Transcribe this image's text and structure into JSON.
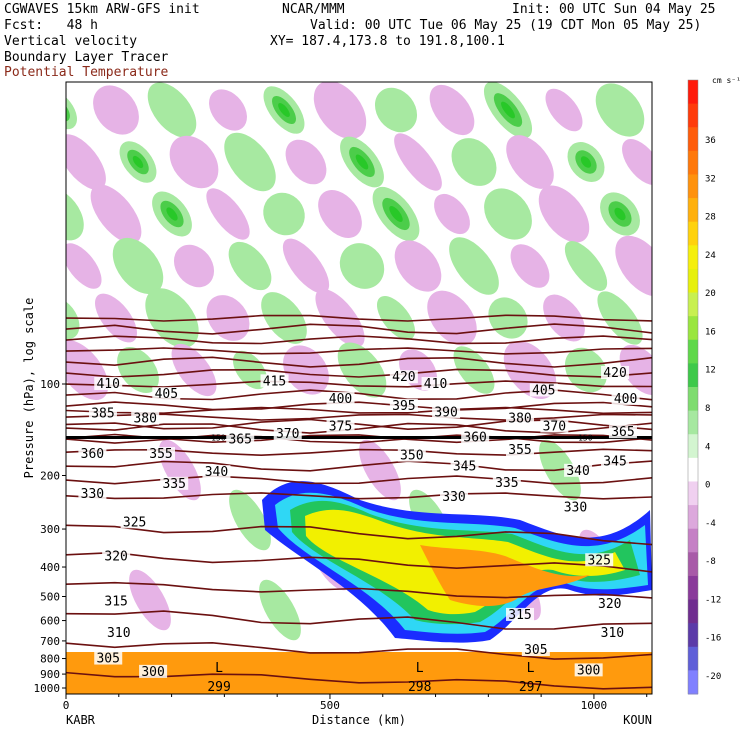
{
  "header": {
    "line1_left": "CGWAVES 15km ARW-GFS init",
    "line1_mid": "NCAR/MMM",
    "line1_right": "Init: 00 UTC Sun 04 May 25",
    "line2_left": "Fcst:   48 h",
    "line2_right": "Valid: 00 UTC Tue 06 May 25 (19 CDT Mon 05 May 25)",
    "line3_left": "Vertical velocity",
    "line3_right": "XY= 187.4,173.8 to 191.8,100.1",
    "line4_left": "Boundary Layer Tracer",
    "line5_left": "Potential Temperature"
  },
  "colors": {
    "theta": "#6b1010",
    "tracer_outer": "#1a2cff",
    "tracer_low": "#2fd7f5",
    "tracer_mid": "#22c55e",
    "tracer_hi": "#f2f000",
    "tracer_top": "#ff9a0d",
    "wave_up": "#a7e9a1",
    "wave_down": "#e6b3e6"
  },
  "chart_data": {
    "type": "cross-section contour",
    "xlabel": "Distance (km)",
    "ylabel": "Pressure (hPa), log scale",
    "x_ticks": [
      0,
      500,
      1000
    ],
    "xlim": [
      0,
      1110
    ],
    "y_ticks": [
      100,
      200,
      300,
      400,
      500,
      600,
      700,
      800,
      900,
      1000
    ],
    "y_scale": "log",
    "left_endpoint": "KABR",
    "right_endpoint": "KOUN",
    "colorbar": {
      "unit": "cm s⁻¹",
      "tick_labels": [
        36,
        32,
        28,
        24,
        20,
        16,
        12,
        8,
        4,
        0,
        -4,
        -8,
        -12,
        -16,
        -20
      ],
      "colors": [
        "#ff1a0a",
        "#ff3b0a",
        "#ff5c0a",
        "#ff780a",
        "#ff920d",
        "#ffb00d",
        "#ffd20d",
        "#f5ef0d",
        "#e7f00d",
        "#c8f050",
        "#9ae63f",
        "#5fd84a",
        "#3ec94a",
        "#7edc6f",
        "#a6e8a0",
        "#d3f5d0",
        "#ffffff",
        "#f0d0f0",
        "#dca8dc",
        "#c580c5",
        "#a85aa8",
        "#8a3a9a",
        "#6f2d8f",
        "#5b3aa8",
        "#5f5fd8",
        "#8080ff"
      ]
    },
    "theta_contours": [
      {
        "label": "420",
        "x": 640,
        "p": 95
      },
      {
        "label": "420",
        "x": 1040,
        "p": 92
      },
      {
        "label": "415",
        "x": 395,
        "p": 98
      },
      {
        "label": "410",
        "x": 80,
        "p": 100
      },
      {
        "label": "410",
        "x": 700,
        "p": 100
      },
      {
        "label": "405",
        "x": 190,
        "p": 108
      },
      {
        "label": "405",
        "x": 905,
        "p": 105
      },
      {
        "label": "400",
        "x": 520,
        "p": 112
      },
      {
        "label": "400",
        "x": 1060,
        "p": 112
      },
      {
        "label": "395",
        "x": 640,
        "p": 118
      },
      {
        "label": "390",
        "x": 720,
        "p": 124
      },
      {
        "label": "385",
        "x": 70,
        "p": 125
      },
      {
        "label": "380",
        "x": 150,
        "p": 130
      },
      {
        "label": "380",
        "x": 860,
        "p": 130
      },
      {
        "label": "375",
        "x": 520,
        "p": 138
      },
      {
        "label": "370",
        "x": 420,
        "p": 146
      },
      {
        "label": "370",
        "x": 925,
        "p": 138
      },
      {
        "label": "365",
        "x": 330,
        "p": 152
      },
      {
        "label": "365",
        "x": 1055,
        "p": 144
      },
      {
        "label": "360",
        "x": 50,
        "p": 170
      },
      {
        "label": "360",
        "x": 775,
        "p": 150
      },
      {
        "label": "355",
        "x": 180,
        "p": 170
      },
      {
        "label": "355",
        "x": 860,
        "p": 165
      },
      {
        "label": "350",
        "x": 655,
        "p": 172
      },
      {
        "label": "345",
        "x": 755,
        "p": 187
      },
      {
        "label": "345",
        "x": 1040,
        "p": 180
      },
      {
        "label": "340",
        "x": 285,
        "p": 195
      },
      {
        "label": "340",
        "x": 970,
        "p": 193
      },
      {
        "label": "335",
        "x": 205,
        "p": 213
      },
      {
        "label": "335",
        "x": 835,
        "p": 212
      },
      {
        "label": "330",
        "x": 50,
        "p": 230
      },
      {
        "label": "330",
        "x": 735,
        "p": 235
      },
      {
        "label": "330",
        "x": 965,
        "p": 255
      },
      {
        "label": "325",
        "x": 130,
        "p": 285
      },
      {
        "label": "325",
        "x": 1010,
        "p": 380
      },
      {
        "label": "320",
        "x": 95,
        "p": 370
      },
      {
        "label": "320",
        "x": 1030,
        "p": 530
      },
      {
        "label": "315",
        "x": 95,
        "p": 520
      },
      {
        "label": "315",
        "x": 860,
        "p": 575
      },
      {
        "label": "310",
        "x": 100,
        "p": 660
      },
      {
        "label": "310",
        "x": 1035,
        "p": 660
      },
      {
        "label": "305",
        "x": 80,
        "p": 800
      },
      {
        "label": "305",
        "x": 890,
        "p": 750
      },
      {
        "label": "300",
        "x": 165,
        "p": 885
      },
      {
        "label": "300",
        "x": 990,
        "p": 875
      }
    ],
    "lows": [
      {
        "label": "L",
        "value": "299",
        "x": 290
      },
      {
        "label": "L",
        "value": "298",
        "x": 670
      },
      {
        "label": "L",
        "value": "297",
        "x": 880
      }
    ],
    "tropopause_marker": "150"
  }
}
